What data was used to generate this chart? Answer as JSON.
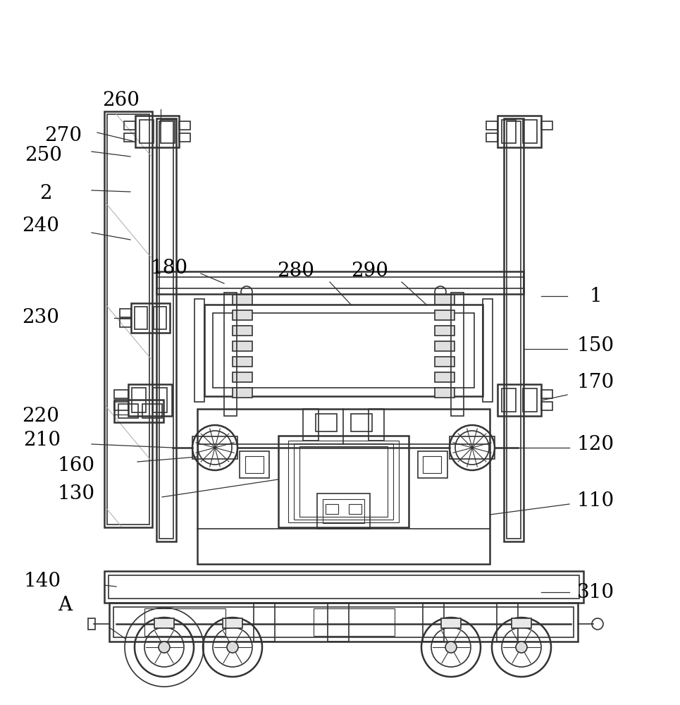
{
  "bg_color": "#ffffff",
  "lc": "#333333",
  "lc2": "#666666",
  "fig_width": 9.65,
  "fig_height": 10.0
}
